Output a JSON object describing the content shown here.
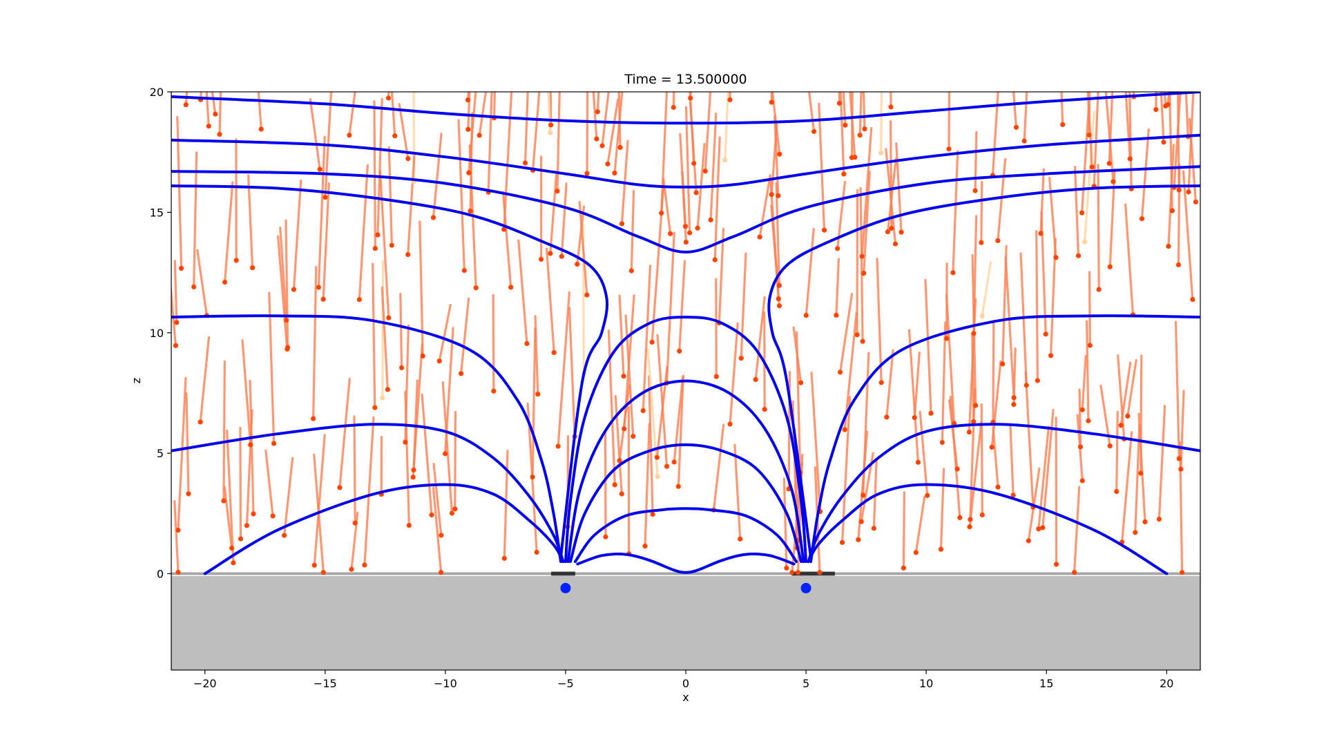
{
  "chart_data": {
    "type": "line",
    "title": "Time = 13.500000",
    "xlabel": "x",
    "ylabel": "z",
    "xlim": [
      -21.4,
      21.4
    ],
    "ylim": [
      -4,
      20
    ],
    "ground_top": -0.1,
    "xticks": [
      -20,
      -15,
      -10,
      -5,
      0,
      5,
      10,
      15,
      20
    ],
    "yticks": [
      0,
      5,
      10,
      15,
      20
    ],
    "grid": false,
    "colors": {
      "field_line": "#0000ee",
      "trail": "#ff7f50",
      "trail_faint": "#fdd49e",
      "particle": "#ff4500",
      "ground": "#bebebe",
      "source": "#0022ff",
      "surface_particles": "#000000"
    },
    "sources": [
      {
        "x": -5.0,
        "z": -0.6
      },
      {
        "x": 5.0,
        "z": -0.6
      }
    ],
    "field_lines": [
      {
        "x": [
          -21.4,
          -15,
          -10,
          -5,
          0,
          5,
          10,
          15,
          21.4
        ],
        "y": [
          19.8,
          19.5,
          19.1,
          18.8,
          18.7,
          18.8,
          19.2,
          19.6,
          20.0
        ]
      },
      {
        "x": [
          -21.4,
          -15,
          -10,
          -5,
          -2,
          0,
          2,
          5,
          10,
          15,
          21.4
        ],
        "y": [
          18.0,
          17.8,
          17.3,
          16.6,
          16.15,
          16.05,
          16.15,
          16.6,
          17.3,
          17.8,
          18.2
        ]
      },
      {
        "x": [
          -21.4,
          -15,
          -10,
          -5,
          -2,
          0,
          2,
          5,
          10,
          15,
          21.4
        ],
        "y": [
          16.7,
          16.6,
          16.2,
          15.2,
          14.0,
          13.35,
          14.0,
          15.2,
          16.2,
          16.6,
          16.9
        ]
      },
      {
        "x": [
          -21.4,
          -17,
          -13,
          -9,
          -6,
          -4,
          -3.3,
          -3.5,
          -4.3,
          -5.2
        ],
        "y": [
          16.1,
          16.0,
          15.6,
          14.9,
          13.8,
          12.8,
          11.5,
          10.0,
          8.0,
          0.7
        ]
      },
      {
        "x": [
          5.2,
          4.2,
          3.6,
          3.5,
          4.2,
          6,
          9,
          13,
          17,
          21.4
        ],
        "y": [
          0.7,
          8.0,
          10.0,
          11.5,
          12.8,
          13.8,
          14.9,
          15.6,
          16.0,
          16.1
        ]
      },
      {
        "x": [
          -21.4,
          -17,
          -13,
          -9,
          -7,
          -6,
          -5.5,
          -5.2
        ],
        "y": [
          10.65,
          10.7,
          10.5,
          9.3,
          7.2,
          4.7,
          2.5,
          0.5
        ]
      },
      {
        "x": [
          5.2,
          5.5,
          6,
          7,
          9,
          13,
          17,
          21.4
        ],
        "y": [
          0.5,
          2.5,
          4.7,
          7.2,
          9.3,
          10.5,
          10.7,
          10.65
        ]
      },
      {
        "x": [
          -21.4,
          -17,
          -13,
          -10,
          -8,
          -6.5,
          -5.5,
          -5.1
        ],
        "y": [
          5.1,
          5.8,
          6.2,
          5.9,
          4.8,
          3.2,
          1.6,
          0.5
        ]
      },
      {
        "x": [
          5.1,
          5.5,
          6.5,
          8,
          10,
          13,
          17,
          21.4
        ],
        "y": [
          0.5,
          1.6,
          3.2,
          4.8,
          5.9,
          6.2,
          5.8,
          5.1
        ]
      },
      {
        "x": [
          -20,
          -17,
          -13,
          -10,
          -8,
          -6.5,
          -5.5,
          -5.1
        ],
        "y": [
          0.0,
          1.8,
          3.3,
          3.7,
          3.3,
          2.2,
          1.2,
          0.5
        ]
      },
      {
        "x": [
          5.1,
          5.5,
          6.5,
          8,
          10,
          13,
          17,
          20
        ],
        "y": [
          0.5,
          1.2,
          2.2,
          3.3,
          3.7,
          3.3,
          1.8,
          0.0
        ]
      },
      {
        "x": [
          -5.0,
          -4.8,
          -4.2,
          -3,
          -1.5,
          0,
          1.5,
          3,
          4.2,
          4.8,
          5.0
        ],
        "y": [
          0.5,
          3.0,
          6.5,
          9.2,
          10.4,
          10.65,
          10.4,
          9.2,
          6.5,
          3.0,
          0.5
        ]
      },
      {
        "x": [
          -4.9,
          -4.4,
          -3.3,
          -1.8,
          0,
          1.8,
          3.3,
          4.4,
          4.9
        ],
        "y": [
          0.5,
          3.5,
          6.0,
          7.5,
          8.0,
          7.5,
          6.0,
          3.5,
          0.5
        ]
      },
      {
        "x": [
          -4.8,
          -4.2,
          -3,
          -1.5,
          0,
          1.5,
          3,
          4.2,
          4.8
        ],
        "y": [
          0.5,
          2.5,
          4.3,
          5.1,
          5.35,
          5.1,
          4.3,
          2.5,
          0.5
        ]
      },
      {
        "x": [
          -4.6,
          -3.8,
          -2.5,
          -1,
          0,
          1,
          2.5,
          3.8,
          4.6
        ],
        "y": [
          0.5,
          1.6,
          2.4,
          2.65,
          2.7,
          2.65,
          2.4,
          1.6,
          0.5
        ]
      },
      {
        "x": [
          -4.5,
          -3.5,
          -2.5,
          -1.5,
          -0.5,
          0,
          0.5,
          1.5,
          2.5,
          3.5,
          4.5
        ],
        "y": [
          0.4,
          0.75,
          0.8,
          0.55,
          0.15,
          0.05,
          0.15,
          0.55,
          0.8,
          0.75,
          0.4
        ]
      }
    ]
  }
}
